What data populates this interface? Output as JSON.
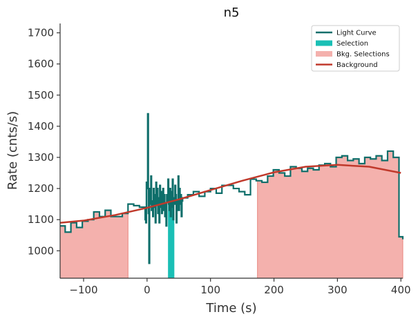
{
  "chart_data": {
    "type": "line",
    "title": "n5",
    "xlabel": "Time (s)",
    "ylabel": "Rate (cnts/s)",
    "xlim": [
      -137,
      403
    ],
    "ylim": [
      912,
      1730
    ],
    "xticks": [
      -100,
      0,
      100,
      200,
      300,
      400
    ],
    "xtick_labels": [
      "−100",
      "0",
      "100",
      "200",
      "300",
      "400"
    ],
    "yticks": [
      1000,
      1100,
      1200,
      1300,
      1400,
      1500,
      1600,
      1700
    ],
    "ytick_labels": [
      "1000",
      "1100",
      "1200",
      "1300",
      "1400",
      "1500",
      "1600",
      "1700"
    ],
    "grid": false,
    "legend_position": "top-right",
    "legend": [
      {
        "label": "Light Curve",
        "kind": "line",
        "color": "#0e6e6a"
      },
      {
        "label": "Selection",
        "kind": "patch",
        "color": "#1abfb5"
      },
      {
        "label": "Bkg. Selections",
        "kind": "patch",
        "color": "#f4b1ad"
      },
      {
        "label": "Background",
        "kind": "line",
        "color": "#c0392b"
      }
    ],
    "colors": {
      "light_curve": "#0e6e6a",
      "selection": "#1abfb5",
      "bkg_fill": "#f4b1ad",
      "bkg_edge": "#e8877f",
      "background": "#c0392b",
      "axis": "#333333"
    },
    "light_curve": {
      "coarse_before": {
        "edges": [
          -137,
          -129,
          -120,
          -111,
          -102,
          -93,
          -84,
          -75,
          -66,
          -57,
          -48,
          -39,
          -30,
          -21,
          -12,
          -3
        ],
        "values": [
          1080,
          1060,
          1090,
          1075,
          1095,
          1100,
          1125,
          1110,
          1130,
          1110,
          1110,
          1120,
          1150,
          1145,
          1140
        ]
      },
      "fine": {
        "x_start": -3,
        "dx": 1,
        "values": [
          1100,
          1090,
          1220,
          1200,
          1440,
          1120,
          960,
          1200,
          1150,
          1240,
          1130,
          1160,
          1110,
          1200,
          1180,
          1140,
          1090,
          1220,
          1150,
          1200,
          1120,
          1170,
          1090,
          1210,
          1140,
          1190,
          1120,
          1160,
          1200,
          1130,
          1180,
          1110,
          1150,
          1080,
          1180,
          1160,
          1230,
          1150,
          1130,
          1200,
          1110,
          1190,
          1140,
          1230,
          1100,
          1170,
          1150,
          1210,
          1180,
          1090,
          1160,
          1130,
          1240,
          1130,
          1200,
          1150,
          1180,
          1110,
          1160
        ]
      },
      "coarse_after": {
        "edges": [
          56,
          64,
          73,
          82,
          91,
          100,
          109,
          118,
          127,
          136,
          145,
          154,
          163,
          172,
          181,
          190,
          199,
          208,
          217,
          226,
          235,
          244,
          253,
          262,
          271,
          280,
          289,
          298,
          307,
          316,
          325,
          334,
          343,
          352,
          361,
          370,
          379,
          388,
          397,
          403
        ],
        "values": [
          1170,
          1180,
          1190,
          1175,
          1190,
          1200,
          1185,
          1210,
          1210,
          1200,
          1190,
          1180,
          1230,
          1225,
          1220,
          1240,
          1260,
          1250,
          1240,
          1270,
          1265,
          1255,
          1265,
          1260,
          1275,
          1280,
          1270,
          1300,
          1305,
          1290,
          1295,
          1280,
          1300,
          1295,
          1305,
          1290,
          1320,
          1300,
          1045
        ]
      }
    },
    "selection_interval": [
      33,
      43
    ],
    "bkg_selections": [
      [
        -137,
        -30
      ],
      [
        174,
        403
      ]
    ],
    "background": {
      "x": [
        -137,
        -100,
        -50,
        0,
        50,
        100,
        150,
        200,
        250,
        300,
        350,
        400
      ],
      "y": [
        1090,
        1097,
        1115,
        1138,
        1165,
        1195,
        1225,
        1252,
        1270,
        1276,
        1270,
        1250
      ]
    }
  }
}
